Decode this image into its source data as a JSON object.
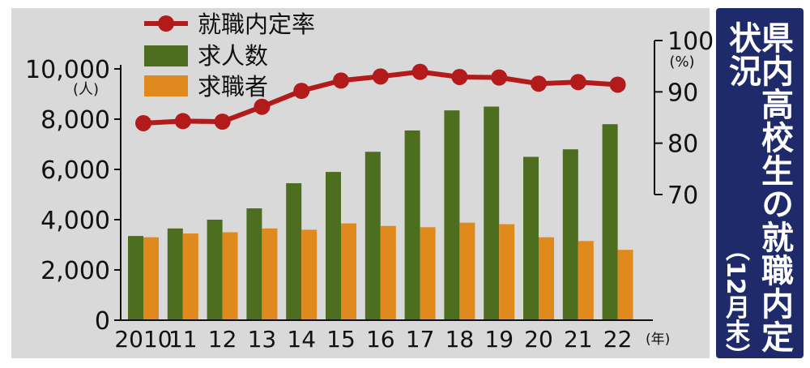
{
  "panel_title": "県内高校生の就職内定状況",
  "panel_subtitle": "（12月末）",
  "colors": {
    "rate_line": "#b31b1b",
    "jobs_bar": "#4d6e1e",
    "seekers_bar": "#e08a1e",
    "plot_background": "#d9d9d9",
    "panel_background": "#1f2a6b"
  },
  "chart_data": {
    "type": "bar",
    "categories": [
      "2010",
      "11",
      "12",
      "13",
      "14",
      "15",
      "16",
      "17",
      "18",
      "19",
      "20",
      "21",
      "22"
    ],
    "x_unit": "(年)",
    "series": [
      {
        "name": "求人数",
        "type": "bar",
        "axis": "left",
        "values": [
          3350,
          3650,
          4000,
          4450,
          5450,
          5900,
          6700,
          7550,
          8350,
          8500,
          6500,
          6800,
          7800
        ]
      },
      {
        "name": "求職者",
        "type": "bar",
        "axis": "left",
        "values": [
          3300,
          3450,
          3500,
          3650,
          3600,
          3850,
          3750,
          3700,
          3880,
          3820,
          3300,
          3150,
          2800
        ]
      },
      {
        "name": "就職内定率",
        "type": "line",
        "axis": "right",
        "values": [
          83.9,
          84.3,
          84.2,
          87.1,
          90.2,
          92.2,
          93.0,
          93.9,
          92.9,
          92.8,
          91.6,
          91.9,
          91.4
        ]
      }
    ],
    "y_left": {
      "unit": "(人)",
      "ylim": [
        0,
        10000
      ],
      "ticks": [
        0,
        2000,
        4000,
        6000,
        8000,
        10000
      ],
      "tick_labels": [
        "0",
        "2,000",
        "4,000",
        "6,000",
        "8,000",
        "10,000"
      ]
    },
    "y_right": {
      "unit": "(%)",
      "ylim": [
        70,
        100
      ],
      "ticks": [
        70,
        80,
        90,
        100
      ],
      "tick_labels": [
        "70",
        "80",
        "90",
        "100"
      ]
    },
    "legend": {
      "position": "top-left",
      "entries": [
        "就職内定率",
        "求人数",
        "求職者"
      ]
    },
    "grid": false
  }
}
